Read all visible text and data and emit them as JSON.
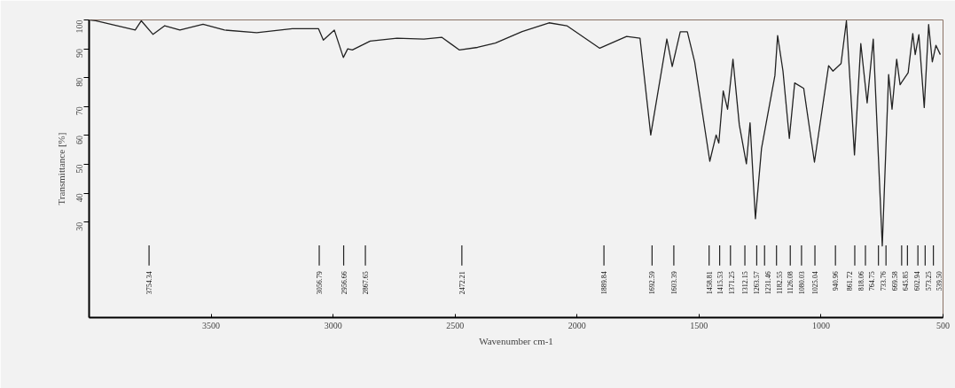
{
  "chart_data": {
    "type": "line",
    "xlabel": "Wavenumber cm-1",
    "ylabel": "Transmittance [%]",
    "xlim": [
      4000,
      500
    ],
    "xticks": [
      3500,
      3000,
      2500,
      2000,
      1500,
      1000,
      500
    ],
    "ylim": [
      -3,
      100
    ],
    "yticks": [
      30,
      40,
      50,
      60,
      70,
      80,
      90,
      100
    ],
    "grid": false,
    "marker": "none",
    "line_style": "solid",
    "series": [
      {
        "color": "#222222",
        "x": [
          3995,
          3973,
          3811,
          3786,
          3738,
          3690,
          3628,
          3533,
          3445,
          3313,
          3167,
          3093,
          3060,
          3040,
          2995,
          2958,
          2940,
          2921,
          2848,
          2738,
          2628,
          2555,
          2482,
          2408,
          2335,
          2225,
          2115,
          2042,
          1907,
          1797,
          1742,
          1698,
          1632,
          1610,
          1577,
          1548,
          1518,
          1456,
          1430,
          1419,
          1401,
          1383,
          1361,
          1335,
          1306,
          1291,
          1269,
          1244,
          1189,
          1178,
          1156,
          1130,
          1108,
          1071,
          1027,
          969,
          951,
          918,
          896,
          863,
          837,
          811,
          786,
          749,
          723,
          709,
          690,
          676,
          643,
          624,
          614,
          599,
          577,
          559,
          544,
          529,
          511
        ],
        "values": [
          100,
          99.7,
          96.5,
          99.7,
          95,
          98,
          96.5,
          98.5,
          96.5,
          95.6,
          97,
          97,
          97,
          93,
          96.5,
          87,
          90,
          89.6,
          92.7,
          93.7,
          93.4,
          94,
          89.6,
          90.5,
          92,
          96,
          99,
          98,
          90.2,
          94.3,
          93.7,
          60.2,
          93.4,
          83.9,
          95.9,
          95.9,
          85.5,
          51.1,
          60.2,
          57.4,
          75.4,
          69.1,
          86.4,
          63.7,
          50.2,
          64.4,
          31.2,
          55.5,
          80.8,
          94.6,
          82.3,
          59,
          78.2,
          76.3,
          50.8,
          84.2,
          82.3,
          84.9,
          99.7,
          53.3,
          91.8,
          71.3,
          93.4,
          21.8,
          81.1,
          69.1,
          86.4,
          77.6,
          81.7,
          95.3,
          88,
          94.9,
          69.7,
          98.4,
          85.5,
          91.2,
          88
        ]
      }
    ],
    "ref_lines": [
      {
        "axis": "x",
        "value": 3754.34,
        "label": "3754.34"
      },
      {
        "axis": "x",
        "value": 3056.79,
        "label": "3056.79"
      },
      {
        "axis": "x",
        "value": 2956.66,
        "label": "2956.66"
      },
      {
        "axis": "x",
        "value": 2867.65,
        "label": "2867.65"
      },
      {
        "axis": "x",
        "value": 2472.21,
        "label": "2472.21"
      },
      {
        "axis": "x",
        "value": 1889.84,
        "label": "1889.84"
      },
      {
        "axis": "x",
        "value": 1692.59,
        "label": "1692.59"
      },
      {
        "axis": "x",
        "value": 1603.39,
        "label": "1603.39"
      },
      {
        "axis": "x",
        "value": 1458.81,
        "label": "1458.81"
      },
      {
        "axis": "x",
        "value": 1415.53,
        "label": "1415.53"
      },
      {
        "axis": "x",
        "value": 1371.25,
        "label": "1371.25"
      },
      {
        "axis": "x",
        "value": 1312.15,
        "label": "1312.15"
      },
      {
        "axis": "x",
        "value": 1263.57,
        "label": "1263.57"
      },
      {
        "axis": "x",
        "value": 1231.46,
        "label": "1231.46"
      },
      {
        "axis": "x",
        "value": 1182.55,
        "label": "1182.55"
      },
      {
        "axis": "x",
        "value": 1126.08,
        "label": "1126.08"
      },
      {
        "axis": "x",
        "value": 1080.03,
        "label": "1080.03"
      },
      {
        "axis": "x",
        "value": 1025.04,
        "label": "1025.04"
      },
      {
        "axis": "x",
        "value": 940.96,
        "label": "940.96"
      },
      {
        "axis": "x",
        "value": 861.72,
        "label": "861.72"
      },
      {
        "axis": "x",
        "value": 818.06,
        "label": "818.06"
      },
      {
        "axis": "x",
        "value": 764.75,
        "label": "764.75"
      },
      {
        "axis": "x",
        "value": 733.76,
        "label": "733.76"
      },
      {
        "axis": "x",
        "value": 669.58,
        "label": "669.58"
      },
      {
        "axis": "x",
        "value": 645.85,
        "label": "645.85"
      },
      {
        "axis": "x",
        "value": 602.94,
        "label": "602.94"
      },
      {
        "axis": "x",
        "value": 573.25,
        "label": "573.25"
      },
      {
        "axis": "x",
        "value": 539.5,
        "label": "539.50"
      }
    ]
  }
}
